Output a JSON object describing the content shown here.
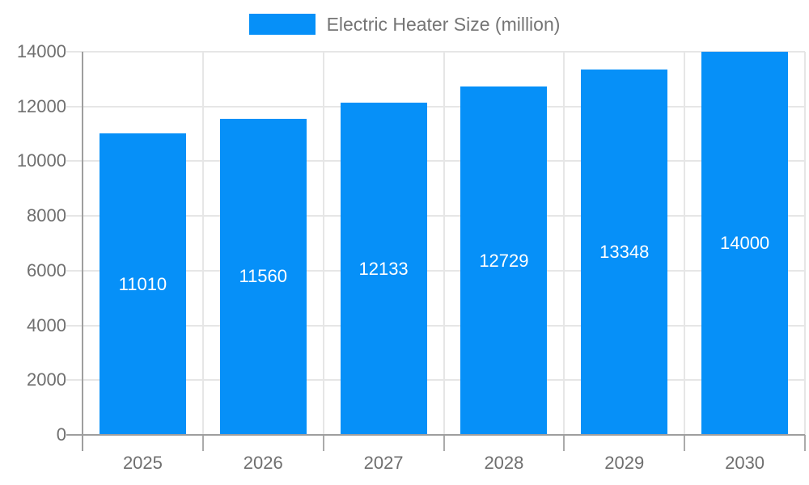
{
  "chart_data": {
    "type": "bar",
    "categories": [
      "2025",
      "2026",
      "2027",
      "2028",
      "2029",
      "2030"
    ],
    "values": [
      11010,
      11560,
      12133,
      12729,
      13348,
      14000
    ],
    "series_name": "Electric Heater Size (million)",
    "title": "",
    "xlabel": "",
    "ylabel": "",
    "ylim": [
      0,
      14000
    ],
    "ytick_step": 2000,
    "grid": true,
    "legend_position": "top",
    "bar_color": "#0690f8",
    "axis_color": "#9e9e9e",
    "tick_color": "#ababab",
    "gridline_color": "#e6e6e6",
    "label_color": "#6f6f6f",
    "legend_text_color": "#757575",
    "value_label_color": "#ffffff",
    "background_color": "#ffffff"
  }
}
